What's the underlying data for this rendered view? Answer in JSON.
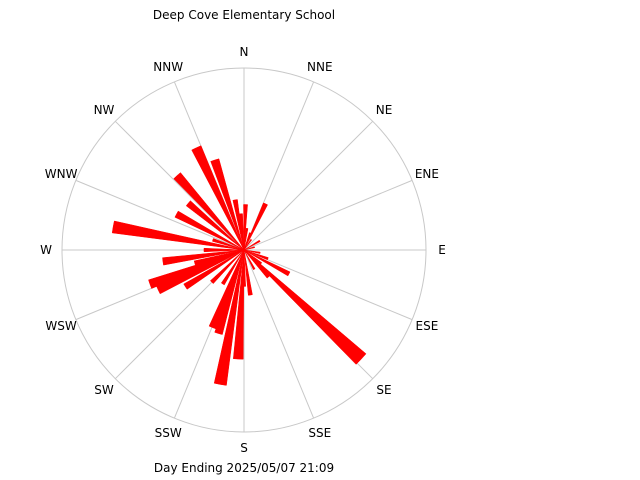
{
  "chart_data": {
    "type": "polar_bar",
    "title": "Deep Cove Elementary School",
    "footer": "Day Ending 2025/05/07 21:09",
    "directions": [
      "N",
      "NNE",
      "NE",
      "ENE",
      "E",
      "ESE",
      "SE",
      "SSE",
      "S",
      "SSW",
      "SW",
      "WSW",
      "W",
      "WNW",
      "NW",
      "NNW"
    ],
    "bar_color": "#ff0000",
    "grid_color": "#c8c8c8",
    "radial_range": [
      0,
      1
    ],
    "bars": [
      {
        "bearing": 2,
        "value": 0.25
      },
      {
        "bearing": 8,
        "value": 0.12
      },
      {
        "bearing": 20,
        "value": 0.1
      },
      {
        "bearing": 25,
        "value": 0.28
      },
      {
        "bearing": 35,
        "value": 0.07
      },
      {
        "bearing": 60,
        "value": 0.1
      },
      {
        "bearing": 75,
        "value": 0.06
      },
      {
        "bearing": 100,
        "value": 0.09
      },
      {
        "bearing": 110,
        "value": 0.14
      },
      {
        "bearing": 118,
        "value": 0.28
      },
      {
        "bearing": 128,
        "value": 0.12
      },
      {
        "bearing": 133,
        "value": 0.88
      },
      {
        "bearing": 138,
        "value": 0.2
      },
      {
        "bearing": 152,
        "value": 0.12
      },
      {
        "bearing": 172,
        "value": 0.25
      },
      {
        "bearing": 180,
        "value": 0.2
      },
      {
        "bearing": 183,
        "value": 0.6
      },
      {
        "bearing": 190,
        "value": 0.75
      },
      {
        "bearing": 197,
        "value": 0.48
      },
      {
        "bearing": 202,
        "value": 0.46
      },
      {
        "bearing": 212,
        "value": 0.22
      },
      {
        "bearing": 225,
        "value": 0.25
      },
      {
        "bearing": 238,
        "value": 0.38
      },
      {
        "bearing": 245,
        "value": 0.52
      },
      {
        "bearing": 250,
        "value": 0.55
      },
      {
        "bearing": 255,
        "value": 0.28
      },
      {
        "bearing": 262,
        "value": 0.45
      },
      {
        "bearing": 270,
        "value": 0.22
      },
      {
        "bearing": 280,
        "value": 0.73
      },
      {
        "bearing": 288,
        "value": 0.18
      },
      {
        "bearing": 298,
        "value": 0.42
      },
      {
        "bearing": 310,
        "value": 0.4
      },
      {
        "bearing": 318,
        "value": 0.55
      },
      {
        "bearing": 335,
        "value": 0.62
      },
      {
        "bearing": 342,
        "value": 0.52
      },
      {
        "bearing": 350,
        "value": 0.28
      },
      {
        "bearing": 355,
        "value": 0.2
      }
    ]
  }
}
